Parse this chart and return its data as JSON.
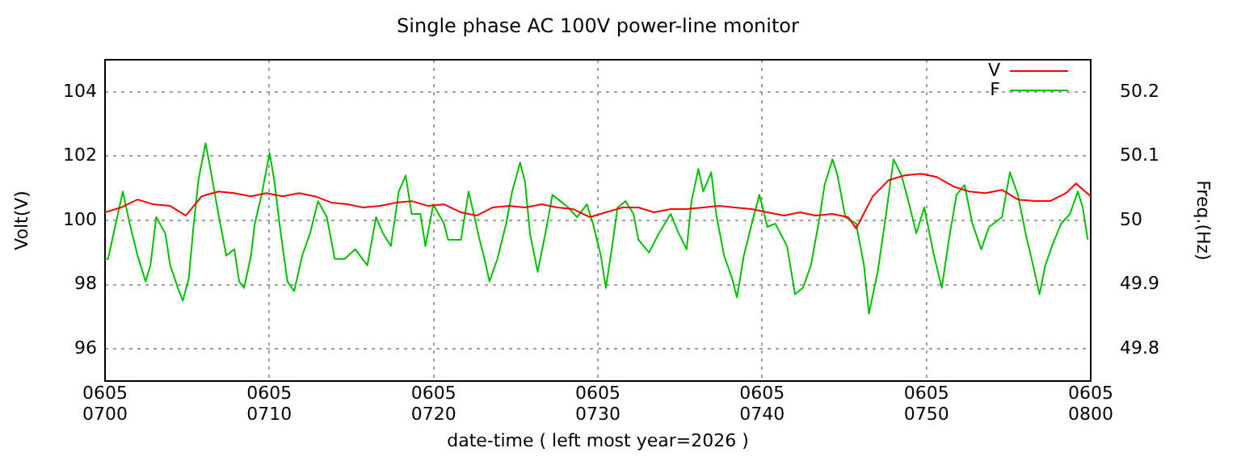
{
  "chart_data": {
    "type": "line",
    "title": "Single phase AC 100V power-line monitor",
    "xlabel": "date-time ( left most year=2026 )",
    "ylabel": "Volt(V)",
    "y2label": "Freq.(Hz)",
    "xlim": [
      "2026-06-05T07:00",
      "2026-06-05T08:00"
    ],
    "xticks": [
      {
        "value": "2026-06-05T07:00",
        "label": "0605\n0700"
      },
      {
        "value": "2026-06-05T07:10",
        "label": "0605\n0710"
      },
      {
        "value": "2026-06-05T07:20",
        "label": "0605\n0720"
      },
      {
        "value": "2026-06-05T07:30",
        "label": "0605\n0730"
      },
      {
        "value": "2026-06-05T07:40",
        "label": "0605\n0740"
      },
      {
        "value": "2026-06-05T07:50",
        "label": "0605\n0750"
      },
      {
        "value": "2026-06-05T08:00",
        "label": "0605\n0800"
      }
    ],
    "ylim": [
      95,
      105
    ],
    "yticks": [
      96,
      98,
      100,
      102,
      104
    ],
    "y2lim": [
      49.75,
      50.25
    ],
    "y2ticks": [
      49.8,
      49.9,
      50,
      50.1,
      50.2
    ],
    "grid": true,
    "legend": "top right",
    "marker": "none",
    "line_style": "solid",
    "series": [
      {
        "name": "V",
        "color": "#ff0000",
        "x": [
          "2026-06-05T07:00:00",
          "2026-06-05T07:00:58",
          "2026-06-05T07:01:59",
          "2026-06-05T07:02:56",
          "2026-06-05T07:03:58",
          "2026-06-05T07:04:55",
          "2026-06-05T07:05:53",
          "2026-06-05T07:06:54",
          "2026-06-05T07:07:52",
          "2026-06-05T07:08:53",
          "2026-06-05T07:09:50",
          "2026-06-05T07:10:48",
          "2026-06-05T07:11:49",
          "2026-06-05T07:12:47",
          "2026-06-05T07:13:48",
          "2026-06-05T07:14:46",
          "2026-06-05T07:15:43",
          "2026-06-05T07:16:44",
          "2026-06-05T07:17:42",
          "2026-06-05T07:18:40",
          "2026-06-05T07:19:41",
          "2026-06-05T07:20:38",
          "2026-06-05T07:21:40",
          "2026-06-05T07:22:37",
          "2026-06-05T07:23:35",
          "2026-06-05T07:24:36",
          "2026-06-05T07:25:34",
          "2026-06-05T07:26:35",
          "2026-06-05T07:27:32",
          "2026-06-05T07:28:30",
          "2026-06-05T07:29:31",
          "2026-06-05T07:30:29",
          "2026-06-05T07:31:30",
          "2026-06-05T07:32:28",
          "2026-06-05T07:33:25",
          "2026-06-05T07:34:26",
          "2026-06-05T07:35:24",
          "2026-06-05T07:36:25",
          "2026-06-05T07:37:23",
          "2026-06-05T07:38:20",
          "2026-06-05T07:39:22",
          "2026-06-05T07:40:19",
          "2026-06-05T07:41:20",
          "2026-06-05T07:42:18",
          "2026-06-05T07:43:16",
          "2026-06-05T07:44:17",
          "2026-06-05T07:45:14",
          "2026-06-05T07:45:43",
          "2026-06-05T07:46:44",
          "2026-06-05T07:47:42",
          "2026-06-05T07:48:40",
          "2026-06-05T07:49:41",
          "2026-06-05T07:50:38",
          "2026-06-05T07:51:40",
          "2026-06-05T07:52:37",
          "2026-06-05T07:53:35",
          "2026-06-05T07:54:36",
          "2026-06-05T07:55:34",
          "2026-06-05T07:56:35",
          "2026-06-05T07:57:32",
          "2026-06-05T07:58:30",
          "2026-06-05T07:59:06",
          "2026-06-05T08:00:00"
        ],
        "values": [
          100.25,
          100.4,
          100.65,
          100.5,
          100.45,
          100.15,
          100.75,
          100.9,
          100.85,
          100.75,
          100.85,
          100.75,
          100.85,
          100.75,
          100.55,
          100.5,
          100.4,
          100.45,
          100.55,
          100.6,
          100.45,
          100.5,
          100.25,
          100.15,
          100.4,
          100.45,
          100.4,
          100.5,
          100.4,
          100.35,
          100.1,
          100.25,
          100.4,
          100.4,
          100.25,
          100.35,
          100.35,
          100.4,
          100.45,
          100.4,
          100.35,
          100.25,
          100.15,
          100.25,
          100.15,
          100.2,
          100.1,
          99.75,
          100.75,
          101.25,
          101.4,
          101.45,
          101.35,
          101.05,
          100.9,
          100.85,
          100.95,
          100.65,
          100.6,
          100.6,
          100.85,
          101.15,
          100.75
        ]
      },
      {
        "name": "F",
        "color": "#00c000",
        "axis": "y2",
        "x": [
          "2026-06-05T07:00:00",
          "2026-06-05T07:00:11",
          "2026-06-05T07:01:05",
          "2026-06-05T07:01:30",
          "2026-06-05T07:01:59",
          "2026-06-05T07:02:28",
          "2026-06-05T07:02:46",
          "2026-06-05T07:03:07",
          "2026-06-05T07:03:40",
          "2026-06-05T07:03:58",
          "2026-06-05T07:04:26",
          "2026-06-05T07:04:44",
          "2026-06-05T07:05:06",
          "2026-06-05T07:05:24",
          "2026-06-05T07:05:42",
          "2026-06-05T07:06:07",
          "2026-06-05T07:06:25",
          "2026-06-05T07:06:54",
          "2026-06-05T07:07:23",
          "2026-06-05T07:07:52",
          "2026-06-05T07:08:10",
          "2026-06-05T07:08:28",
          "2026-06-05T07:08:53",
          "2026-06-05T07:09:07",
          "2026-06-05T07:09:32",
          "2026-06-05T07:10:01",
          "2026-06-05T07:10:19",
          "2026-06-05T07:10:37",
          "2026-06-05T07:11:06",
          "2026-06-05T07:11:31",
          "2026-06-05T07:12:00",
          "2026-06-05T07:12:29",
          "2026-06-05T07:12:58",
          "2026-06-05T07:13:30",
          "2026-06-05T07:13:59",
          "2026-06-05T07:14:35",
          "2026-06-05T07:15:14",
          "2026-06-05T07:15:58",
          "2026-06-05T07:16:30",
          "2026-06-05T07:16:55",
          "2026-06-05T07:17:24",
          "2026-06-05T07:17:53",
          "2026-06-05T07:18:18",
          "2026-06-05T07:18:40",
          "2026-06-05T07:19:12",
          "2026-06-05T07:19:30",
          "2026-06-05T07:19:59",
          "2026-06-05T07:20:38",
          "2026-06-05T07:20:53",
          "2026-06-05T07:21:40",
          "2026-06-05T07:22:08",
          "2026-06-05T07:22:48",
          "2026-06-05T07:23:06",
          "2026-06-05T07:23:24",
          "2026-06-05T07:23:53",
          "2026-06-05T07:24:25",
          "2026-06-05T07:24:47",
          "2026-06-05T07:25:16",
          "2026-06-05T07:25:34",
          "2026-06-05T07:25:52",
          "2026-06-05T07:26:20",
          "2026-06-05T07:26:53",
          "2026-06-05T07:27:14",
          "2026-06-05T07:27:43",
          "2026-06-05T07:28:12",
          "2026-06-05T07:28:44",
          "2026-06-05T07:29:20",
          "2026-06-05T07:29:42",
          "2026-06-05T07:30:11",
          "2026-06-05T07:30:29",
          "2026-06-05T07:30:47",
          "2026-06-05T07:31:12",
          "2026-06-05T07:31:41",
          "2026-06-05T07:32:10",
          "2026-06-05T07:32:28",
          "2026-06-05T07:33:07",
          "2026-06-05T07:33:43",
          "2026-06-05T07:34:26",
          "2026-06-05T07:34:55",
          "2026-06-05T07:35:24",
          "2026-06-05T07:35:42",
          "2026-06-05T07:36:07",
          "2026-06-05T07:36:25",
          "2026-06-05T07:36:54",
          "2026-06-05T07:37:12",
          "2026-06-05T07:37:41",
          "2026-06-05T07:38:10",
          "2026-06-05T07:38:28",
          "2026-06-05T07:38:53",
          "2026-06-05T07:39:22",
          "2026-06-05T07:39:50",
          "2026-06-05T07:40:19",
          "2026-06-05T07:40:48",
          "2026-06-05T07:41:31",
          "2026-06-05T07:42:00",
          "2026-06-05T07:42:29",
          "2026-06-05T07:42:58",
          "2026-06-05T07:43:30",
          "2026-06-05T07:43:48",
          "2026-06-05T07:44:17",
          "2026-06-05T07:44:35",
          "2026-06-05T07:45:04",
          "2026-06-05T07:45:43",
          "2026-06-05T07:46:12",
          "2026-06-05T07:46:30",
          "2026-06-05T07:47:02",
          "2026-06-05T07:47:31",
          "2026-06-05T07:48:00",
          "2026-06-05T07:48:29",
          "2026-06-05T07:48:54",
          "2026-06-05T07:49:23",
          "2026-06-05T07:49:52",
          "2026-06-05T07:50:28",
          "2026-06-05T07:50:56",
          "2026-06-05T07:51:22",
          "2026-06-05T07:51:50",
          "2026-06-05T07:52:19",
          "2026-06-05T07:52:48",
          "2026-06-05T07:53:20",
          "2026-06-05T07:53:49",
          "2026-06-05T07:54:36",
          "2026-06-05T07:55:05",
          "2026-06-05T07:55:34",
          "2026-06-05T07:56:02",
          "2026-06-05T07:56:35",
          "2026-06-05T07:56:53",
          "2026-06-05T07:57:14",
          "2026-06-05T07:57:43",
          "2026-06-05T07:58:12",
          "2026-06-05T07:58:44",
          "2026-06-05T07:59:13",
          "2026-06-05T07:59:31",
          "2026-06-05T07:59:49"
        ],
        "values": [
          49.94,
          49.94,
          50.045,
          49.995,
          49.945,
          49.905,
          49.93,
          50.005,
          49.98,
          49.93,
          49.895,
          49.875,
          49.91,
          49.995,
          50.065,
          50.12,
          50.08,
          50.01,
          49.945,
          49.955,
          49.905,
          49.895,
          49.945,
          49.995,
          50.04,
          50.105,
          50.06,
          49.995,
          49.905,
          49.89,
          49.945,
          49.98,
          50.03,
          50.005,
          49.94,
          49.94,
          49.955,
          49.93,
          50.005,
          49.98,
          49.96,
          50.045,
          50.07,
          50.01,
          50.01,
          49.96,
          50.025,
          49.995,
          49.97,
          49.97,
          50.045,
          49.97,
          49.94,
          49.905,
          49.94,
          49.995,
          50.045,
          50.09,
          50.06,
          49.98,
          49.92,
          49.99,
          50.04,
          50.03,
          50.02,
          50.005,
          50.025,
          49.995,
          49.945,
          49.895,
          49.945,
          50.02,
          50.03,
          50.01,
          49.97,
          49.95,
          49.98,
          50.01,
          49.98,
          49.955,
          50.03,
          50.08,
          50.045,
          50.075,
          50.01,
          49.945,
          49.91,
          49.88,
          49.945,
          49.995,
          50.04,
          49.99,
          49.995,
          49.96,
          49.885,
          49.895,
          49.93,
          50.005,
          50.055,
          50.095,
          50.07,
          50.005,
          49.995,
          49.93,
          49.855,
          49.92,
          50.005,
          50.095,
          50.07,
          50.03,
          49.98,
          50.02,
          49.945,
          49.895,
          49.97,
          50.04,
          50.055,
          49.995,
          49.955,
          49.99,
          50.005,
          50.075,
          50.04,
          49.98,
          49.92,
          49.885,
          49.93,
          49.965,
          49.995,
          50.01,
          50.045,
          50.02,
          49.97
        ]
      }
    ]
  }
}
